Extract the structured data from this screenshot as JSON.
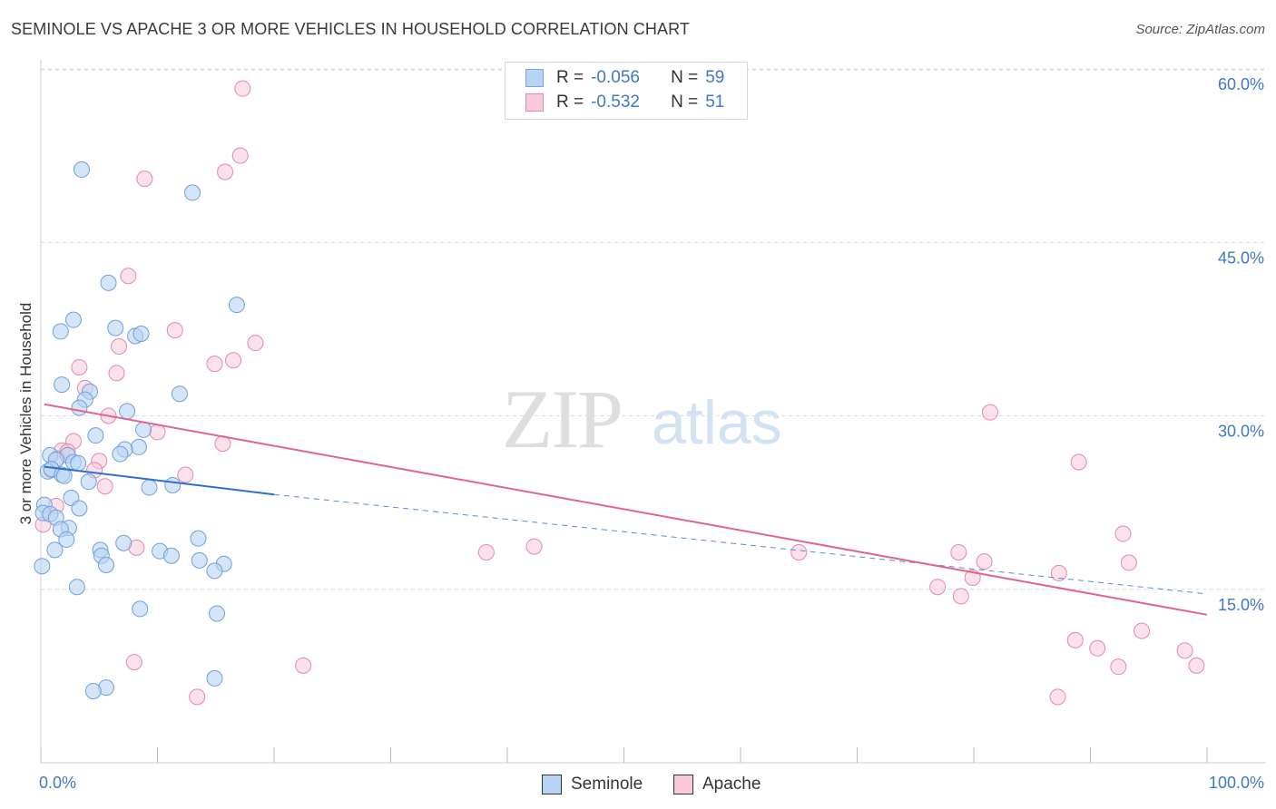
{
  "title": "SEMINOLE VS APACHE 3 OR MORE VEHICLES IN HOUSEHOLD CORRELATION CHART",
  "source": "Source: ZipAtlas.com",
  "watermark": {
    "zip": "ZIP",
    "atlas": "atlas"
  },
  "legend": {
    "rows": [
      {
        "r_label": "R =",
        "r_value": "-0.056",
        "n_label": "N =",
        "n_value": "59"
      },
      {
        "r_label": "R =",
        "r_value": "-0.532",
        "n_label": "N =",
        "n_value": "51"
      }
    ]
  },
  "bottom_legend": {
    "seminole": "Seminole",
    "apache": "Apache"
  },
  "colors": {
    "seminole_fill": "#b8d3f3",
    "seminole_stroke": "#6fa0dc",
    "seminole_line": "#2f6fd0",
    "apache_fill": "#f8c9d8",
    "apache_stroke": "#e48aa8",
    "apache_line": "#e0648e",
    "axis_text": "#3f78c6",
    "grid": "#dcdcdc"
  },
  "chart_data": {
    "type": "scatter",
    "title": "SEMINOLE VS APACHE 3 OR MORE VEHICLES IN HOUSEHOLD CORRELATION CHART",
    "xlabel": "",
    "ylabel": "3 or more Vehicles in Household",
    "xlim": [
      0,
      100
    ],
    "ylim": [
      0,
      63
    ],
    "x_tick_labels": [
      {
        "value": 0,
        "label": "0.0%"
      },
      {
        "value": 100,
        "label": "100.0%"
      }
    ],
    "y_ticks": [
      {
        "value": 15,
        "label": "15.0%"
      },
      {
        "value": 30,
        "label": "30.0%"
      },
      {
        "value": 45,
        "label": "45.0%"
      },
      {
        "value": 60,
        "label": "60.0%"
      }
    ],
    "x_minor_ticks": [
      0,
      10,
      20,
      30,
      40,
      50,
      60,
      70,
      80,
      90,
      100
    ],
    "series": [
      {
        "name": "Seminole",
        "R": -0.056,
        "N": 59,
        "trend_solid": {
          "x": [
            0.3,
            20
          ],
          "y": [
            25.6,
            23.2
          ]
        },
        "trend_dashed": {
          "x": [
            20,
            100
          ],
          "y": [
            23.2,
            14.6
          ]
        },
        "points": [
          [
            3.5,
            51.3
          ],
          [
            13,
            49.3
          ],
          [
            5.8,
            41.5
          ],
          [
            16.8,
            39.6
          ],
          [
            2.8,
            38.3
          ],
          [
            1.7,
            37.3
          ],
          [
            6.4,
            37.6
          ],
          [
            8.1,
            36.9
          ],
          [
            8.6,
            37.1
          ],
          [
            1.8,
            32.7
          ],
          [
            4.2,
            32.1
          ],
          [
            11.9,
            31.9
          ],
          [
            3.8,
            31.4
          ],
          [
            3.3,
            30.7
          ],
          [
            7.4,
            30.4
          ],
          [
            8.8,
            28.8
          ],
          [
            4.7,
            28.3
          ],
          [
            8.4,
            27.3
          ],
          [
            7.2,
            27.1
          ],
          [
            6.8,
            26.7
          ],
          [
            0.8,
            26.6
          ],
          [
            2.3,
            26.6
          ],
          [
            1.3,
            26.2
          ],
          [
            2.8,
            26.0
          ],
          [
            3.2,
            25.9
          ],
          [
            0.6,
            25.2
          ],
          [
            0.9,
            25.4
          ],
          [
            1.8,
            24.9
          ],
          [
            2.0,
            24.8
          ],
          [
            4.1,
            24.3
          ],
          [
            9.3,
            23.8
          ],
          [
            11.3,
            24.0
          ],
          [
            2.6,
            22.9
          ],
          [
            0.3,
            22.3
          ],
          [
            3.3,
            22.0
          ],
          [
            0.2,
            21.6
          ],
          [
            0.8,
            21.5
          ],
          [
            1.3,
            21.2
          ],
          [
            2.4,
            20.3
          ],
          [
            1.7,
            20.2
          ],
          [
            2.2,
            19.3
          ],
          [
            13.5,
            19.4
          ],
          [
            7.1,
            19.0
          ],
          [
            1.2,
            18.4
          ],
          [
            5.1,
            18.4
          ],
          [
            10.2,
            18.3
          ],
          [
            11.2,
            17.9
          ],
          [
            5.2,
            17.9
          ],
          [
            13.6,
            17.5
          ],
          [
            15.7,
            17.2
          ],
          [
            5.6,
            17.1
          ],
          [
            0.1,
            17.0
          ],
          [
            14.9,
            16.6
          ],
          [
            3.1,
            15.2
          ],
          [
            8.5,
            13.3
          ],
          [
            15.1,
            12.9
          ],
          [
            14.9,
            7.3
          ],
          [
            5.6,
            6.5
          ],
          [
            4.5,
            6.2
          ]
        ]
      },
      {
        "name": "Apache",
        "R": -0.532,
        "N": 51,
        "trend_solid": {
          "x": [
            0.3,
            100
          ],
          "y": [
            31.0,
            12.8
          ]
        },
        "points": [
          [
            17.3,
            58.3
          ],
          [
            17.1,
            52.5
          ],
          [
            8.9,
            50.5
          ],
          [
            15.8,
            51.1
          ],
          [
            7.5,
            42.1
          ],
          [
            11.5,
            37.4
          ],
          [
            18.4,
            36.3
          ],
          [
            6.7,
            36.0
          ],
          [
            16.5,
            34.8
          ],
          [
            14.9,
            34.5
          ],
          [
            3.3,
            34.2
          ],
          [
            6.5,
            33.7
          ],
          [
            3.8,
            32.4
          ],
          [
            5.8,
            30.0
          ],
          [
            10.0,
            28.6
          ],
          [
            15.6,
            27.6
          ],
          [
            2.8,
            27.8
          ],
          [
            1.8,
            27.0
          ],
          [
            2.3,
            26.9
          ],
          [
            1.4,
            26.3
          ],
          [
            5.0,
            26.1
          ],
          [
            0.9,
            25.3
          ],
          [
            4.6,
            25.3
          ],
          [
            12.4,
            24.9
          ],
          [
            5.5,
            23.9
          ],
          [
            1.3,
            22.2
          ],
          [
            0.2,
            20.6
          ],
          [
            8.2,
            18.6
          ],
          [
            38.2,
            18.2
          ],
          [
            42.3,
            18.7
          ],
          [
            65.0,
            18.2
          ],
          [
            81.4,
            30.3
          ],
          [
            89.0,
            26.0
          ],
          [
            92.8,
            19.8
          ],
          [
            78.7,
            18.2
          ],
          [
            93.3,
            17.3
          ],
          [
            80.9,
            17.4
          ],
          [
            79.9,
            16.0
          ],
          [
            87.3,
            16.4
          ],
          [
            76.9,
            15.2
          ],
          [
            78.9,
            14.4
          ],
          [
            94.4,
            11.4
          ],
          [
            88.7,
            10.6
          ],
          [
            90.6,
            9.9
          ],
          [
            98.1,
            9.7
          ],
          [
            8.0,
            8.7
          ],
          [
            22.5,
            8.4
          ],
          [
            92.4,
            8.3
          ],
          [
            99.1,
            8.4
          ],
          [
            13.4,
            5.7
          ],
          [
            87.2,
            5.7
          ]
        ]
      }
    ]
  }
}
